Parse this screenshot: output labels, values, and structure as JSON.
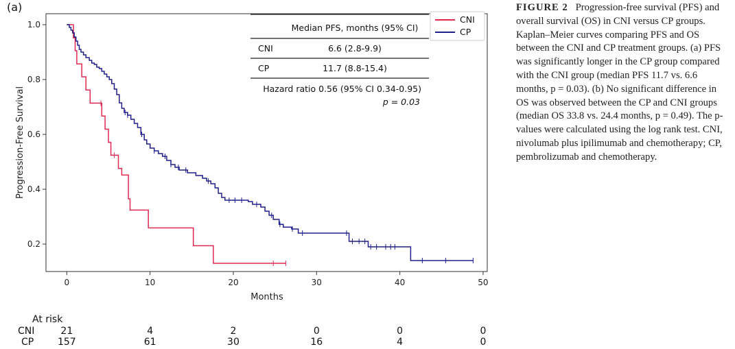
{
  "panel_label": "(a)",
  "caption": {
    "heading": "FIGURE 2",
    "text": "Progression-free survival (PFS) and overall survival (OS) in CNI versus CP groups. Kaplan–Meier curves comparing PFS and OS between the CNI and CP treatment groups. (a) PFS was significantly longer in the CP group compared with the CNI group (median PFS 11.7 vs. 6.6 months, p = 0.03). (b) No significant difference in OS was observed between the CP and CNI groups (median OS 33.8 vs. 24.4 months, p = 0.49). The p-values were calculated using the log rank test. CNI, nivolumab plus ipilimumab and chemotherapy; CP, pembrolizumab and chemotherapy."
  },
  "table": {
    "header": "Median PFS, months (95% CI)",
    "rows": [
      {
        "group": "CNI",
        "value": "6.6 (2.8-9.9)"
      },
      {
        "group": "CP",
        "value": "11.7 (8.8-15.4)"
      }
    ],
    "hazard_ratio": "Hazard ratio 0.56 (95% CI 0.34-0.95)",
    "p_value": "p = 0.03"
  },
  "at_risk": {
    "title": "At risk",
    "rows": [
      {
        "label": "CNI",
        "values": [
          "21",
          "4",
          "2",
          "0",
          "0",
          "0"
        ]
      },
      {
        "label": "CP",
        "values": [
          "157",
          "61",
          "30",
          "16",
          "4",
          "0"
        ]
      }
    ]
  },
  "colors": {
    "CNI": "#e02850",
    "CP": "#1e1e8c"
  },
  "chart_data": {
    "type": "line",
    "xlabel": "Months",
    "ylabel": "Progression-Free Survival",
    "xlim": [
      -2.5,
      50.5
    ],
    "ylim": [
      0.1,
      1.04
    ],
    "xticks": [
      0,
      10,
      20,
      30,
      40,
      50
    ],
    "yticks": [
      0.2,
      0.4,
      0.6,
      0.8,
      1.0
    ],
    "legend": [
      "CNI",
      "CP"
    ],
    "legend_position": "top-right",
    "series": [
      {
        "name": "CNI",
        "step": [
          [
            0,
            1.0
          ],
          [
            0.8,
            0.952
          ],
          [
            1.0,
            0.905
          ],
          [
            1.2,
            0.857
          ],
          [
            1.8,
            0.81
          ],
          [
            2.3,
            0.762
          ],
          [
            2.8,
            0.714
          ],
          [
            4.2,
            0.667
          ],
          [
            4.6,
            0.619
          ],
          [
            5.0,
            0.571
          ],
          [
            5.3,
            0.524
          ],
          [
            6.2,
            0.476
          ],
          [
            6.6,
            0.452
          ],
          [
            7.4,
            0.365
          ],
          [
            7.6,
            0.324
          ],
          [
            9.8,
            0.259
          ],
          [
            15.2,
            0.194
          ],
          [
            17.6,
            0.13
          ],
          [
            26.3,
            0.13
          ]
        ],
        "censor": [
          4.1,
          5.7,
          24.8,
          26.3
        ]
      },
      {
        "name": "CP",
        "step": [
          [
            0,
            1.0
          ],
          [
            0.3,
            0.99
          ],
          [
            0.5,
            0.98
          ],
          [
            0.7,
            0.97
          ],
          [
            0.9,
            0.955
          ],
          [
            1.1,
            0.94
          ],
          [
            1.3,
            0.925
          ],
          [
            1.5,
            0.91
          ],
          [
            1.7,
            0.9
          ],
          [
            2.0,
            0.89
          ],
          [
            2.3,
            0.88
          ],
          [
            2.7,
            0.87
          ],
          [
            3.0,
            0.86
          ],
          [
            3.3,
            0.855
          ],
          [
            3.6,
            0.845
          ],
          [
            3.9,
            0.84
          ],
          [
            4.2,
            0.83
          ],
          [
            4.5,
            0.82
          ],
          [
            4.8,
            0.81
          ],
          [
            5.1,
            0.8
          ],
          [
            5.4,
            0.785
          ],
          [
            5.7,
            0.765
          ],
          [
            6.0,
            0.745
          ],
          [
            6.3,
            0.715
          ],
          [
            6.6,
            0.695
          ],
          [
            6.9,
            0.68
          ],
          [
            7.3,
            0.67
          ],
          [
            7.7,
            0.655
          ],
          [
            8.1,
            0.64
          ],
          [
            8.5,
            0.625
          ],
          [
            8.9,
            0.6
          ],
          [
            9.3,
            0.58
          ],
          [
            9.6,
            0.565
          ],
          [
            10.0,
            0.55
          ],
          [
            10.5,
            0.54
          ],
          [
            11.0,
            0.53
          ],
          [
            11.5,
            0.52
          ],
          [
            12.0,
            0.505
          ],
          [
            12.5,
            0.49
          ],
          [
            13.0,
            0.48
          ],
          [
            13.5,
            0.47
          ],
          [
            14.5,
            0.46
          ],
          [
            15.5,
            0.45
          ],
          [
            16.3,
            0.44
          ],
          [
            16.8,
            0.43
          ],
          [
            17.3,
            0.42
          ],
          [
            17.8,
            0.405
          ],
          [
            18.2,
            0.385
          ],
          [
            18.6,
            0.37
          ],
          [
            19.0,
            0.36
          ],
          [
            21.5,
            0.36
          ],
          [
            21.8,
            0.355
          ],
          [
            22.3,
            0.345
          ],
          [
            23.3,
            0.335
          ],
          [
            23.8,
            0.32
          ],
          [
            24.3,
            0.305
          ],
          [
            24.8,
            0.29
          ],
          [
            25.5,
            0.272
          ],
          [
            26.0,
            0.262
          ],
          [
            27.0,
            0.255
          ],
          [
            27.8,
            0.24
          ],
          [
            30.0,
            0.24
          ],
          [
            33.5,
            0.24
          ],
          [
            33.9,
            0.21
          ],
          [
            35.5,
            0.21
          ],
          [
            36.2,
            0.19
          ],
          [
            38.0,
            0.19
          ],
          [
            41.2,
            0.19
          ],
          [
            41.3,
            0.14
          ],
          [
            48.8,
            0.14
          ]
        ],
        "censor": [
          7.0,
          7.3,
          9.0,
          10.5,
          11.8,
          12.5,
          13.4,
          14.3,
          17.0,
          19.5,
          20.2,
          21.0,
          22.8,
          24.6,
          25.6,
          27.1,
          28.3,
          33.6,
          34.3,
          35.1,
          35.8,
          36.5,
          37.2,
          38.3,
          38.9,
          39.4,
          42.7,
          45.5,
          48.8
        ]
      }
    ]
  }
}
